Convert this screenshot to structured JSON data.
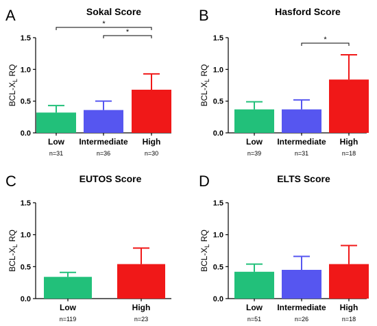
{
  "chart_data": [
    {
      "type": "bar",
      "panel_letter": "A",
      "title": "Sokal Score",
      "ylabel": "BCL-X",
      "ylabel_sub": "L",
      "ylabel_suffix": " RQ",
      "categories": [
        "Low",
        "Intermediate",
        "High"
      ],
      "n_labels": [
        "n=31",
        "n=36",
        "n=30"
      ],
      "values": [
        0.32,
        0.36,
        0.68
      ],
      "errors": [
        0.11,
        0.14,
        0.25
      ],
      "colors": [
        "#22c07a",
        "#5656f0",
        "#f01818"
      ],
      "ylim": [
        0,
        1.5
      ],
      "yticks": [
        "0.0",
        "0.5",
        "1.0",
        "1.5"
      ],
      "significance": [
        {
          "from": 0,
          "to": 2,
          "label": "*"
        },
        {
          "from": 1,
          "to": 2,
          "label": "*"
        }
      ]
    },
    {
      "type": "bar",
      "panel_letter": "B",
      "title": "Hasford Score",
      "ylabel": "BCL-X",
      "ylabel_sub": "L",
      "ylabel_suffix": " RQ",
      "categories": [
        "Low",
        "Intermediate",
        "High"
      ],
      "n_labels": [
        "n=39",
        "n=31",
        "n=18"
      ],
      "values": [
        0.37,
        0.37,
        0.84
      ],
      "errors": [
        0.12,
        0.15,
        0.39
      ],
      "colors": [
        "#22c07a",
        "#5656f0",
        "#f01818"
      ],
      "ylim": [
        0,
        1.5
      ],
      "yticks": [
        "0.0",
        "0.5",
        "1.0",
        "1.5"
      ],
      "significance": [
        {
          "from": 1,
          "to": 2,
          "label": "*"
        }
      ]
    },
    {
      "type": "bar",
      "panel_letter": "C",
      "title": "EUTOS Score",
      "ylabel": "BCL-X",
      "ylabel_sub": "L",
      "ylabel_suffix": " RQ",
      "categories": [
        "Low",
        "High"
      ],
      "n_labels": [
        "n=119",
        "n=23"
      ],
      "values": [
        0.34,
        0.54
      ],
      "errors": [
        0.07,
        0.25
      ],
      "colors": [
        "#22c07a",
        "#f01818"
      ],
      "ylim": [
        0,
        1.5
      ],
      "yticks": [
        "0.0",
        "0.5",
        "1.0",
        "1.5"
      ],
      "significance": []
    },
    {
      "type": "bar",
      "panel_letter": "D",
      "title": "ELTS Score",
      "ylabel": "BCL-X",
      "ylabel_sub": "L",
      "ylabel_suffix": " RQ",
      "categories": [
        "Low",
        "Intermediate",
        "High"
      ],
      "n_labels": [
        "n=51",
        "n=26",
        "n=18"
      ],
      "values": [
        0.42,
        0.45,
        0.54
      ],
      "errors": [
        0.12,
        0.21,
        0.29
      ],
      "colors": [
        "#22c07a",
        "#5656f0",
        "#f01818"
      ],
      "ylim": [
        0,
        1.5
      ],
      "yticks": [
        "0.0",
        "0.5",
        "1.0",
        "1.5"
      ],
      "significance": []
    }
  ]
}
